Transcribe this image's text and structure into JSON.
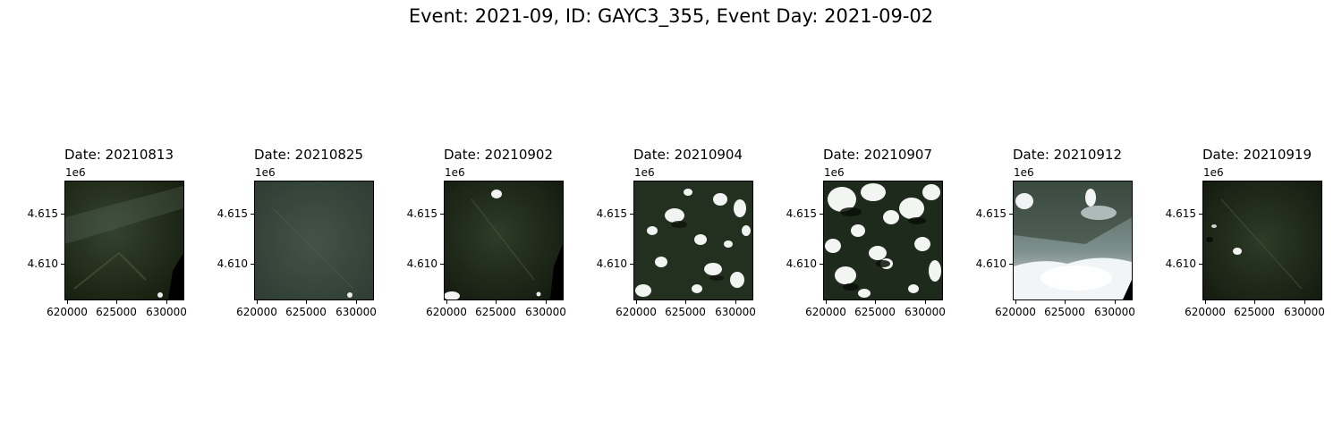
{
  "figure": {
    "title": "Event: 2021-09, ID: GAYC3_355, Event Day: 2021-09-02"
  },
  "axes": {
    "x_tick_labels": [
      "620000",
      "625000",
      "630000"
    ],
    "y_tick_labels": [
      "4.615",
      "4.610"
    ],
    "y_offset_label": "1e6"
  },
  "panels": [
    {
      "title": "Date: 20210813",
      "cloud_cover": "low",
      "description_icon": "satellite-image"
    },
    {
      "title": "Date: 20210825",
      "cloud_cover": "none",
      "description_icon": "satellite-image"
    },
    {
      "title": "Date: 20210902",
      "cloud_cover": "low",
      "description_icon": "satellite-image"
    },
    {
      "title": "Date: 20210904",
      "cloud_cover": "moderate",
      "description_icon": "satellite-image"
    },
    {
      "title": "Date: 20210907",
      "cloud_cover": "heavy",
      "description_icon": "satellite-image"
    },
    {
      "title": "Date: 20210912",
      "cloud_cover": "heavy-haze",
      "description_icon": "satellite-image"
    },
    {
      "title": "Date: 20210919",
      "cloud_cover": "low",
      "description_icon": "satellite-image"
    }
  ],
  "colors": {
    "forest_dark": "#1b2417",
    "forest_mid": "#2a3a25",
    "cloud": "#f2f4f2",
    "haze": "#a9b7b4",
    "no_data": "#000000"
  }
}
